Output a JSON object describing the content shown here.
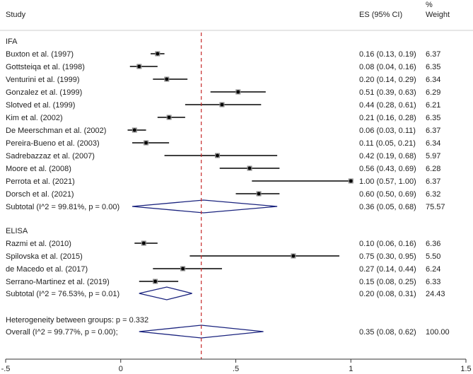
{
  "header": {
    "study": "Study",
    "es": "ES (95% CI)",
    "weight_pct": "%",
    "weight": "Weight"
  },
  "footer": {
    "heterogeneity": "Heterogeneity between groups: p = 0.332"
  },
  "colors": {
    "ci_line": "#000000",
    "marker": "#000000",
    "diamond": "#1a237e",
    "ref_line": "#c62828",
    "axis": "#333333"
  },
  "chart_data": {
    "type": "forest",
    "xlim": [
      -0.5,
      1.5
    ],
    "xticks": [
      {
        "value": -0.5,
        "label": "-.5"
      },
      {
        "value": 0,
        "label": "0"
      },
      {
        "value": 0.5,
        "label": ".5"
      },
      {
        "value": 1,
        "label": "1"
      },
      {
        "value": 1.5,
        "label": "1.5"
      }
    ],
    "overall_line_value": 0.35,
    "groups": [
      {
        "name": "IFA",
        "studies": [
          {
            "label": "Buxton et al.  (1997)",
            "es": 0.16,
            "lo": 0.13,
            "hi": 0.19,
            "es_text": "0.16 (0.13, 0.19)",
            "weight": "6.37"
          },
          {
            "label": "Gottsteiqa et al. (1998)",
            "es": 0.08,
            "lo": 0.04,
            "hi": 0.16,
            "es_text": "0.08 (0.04, 0.16)",
            "weight": "6.35"
          },
          {
            "label": "Venturini et al. (1999)",
            "es": 0.2,
            "lo": 0.14,
            "hi": 0.29,
            "es_text": "0.20 (0.14, 0.29)",
            "weight": "6.34"
          },
          {
            "label": "Gonzalez et al. (1999)",
            "es": 0.51,
            "lo": 0.39,
            "hi": 0.63,
            "es_text": "0.51 (0.39, 0.63)",
            "weight": "6.29"
          },
          {
            "label": "Slotved et al.  (1999)",
            "es": 0.44,
            "lo": 0.28,
            "hi": 0.61,
            "es_text": "0.44 (0.28, 0.61)",
            "weight": "6.21"
          },
          {
            "label": "Kim et al. (2002)",
            "es": 0.21,
            "lo": 0.16,
            "hi": 0.28,
            "es_text": "0.21 (0.16, 0.28)",
            "weight": "6.35"
          },
          {
            "label": "De Meerschman et al.  (2002)",
            "es": 0.06,
            "lo": 0.03,
            "hi": 0.11,
            "es_text": "0.06 (0.03, 0.11)",
            "weight": "6.37"
          },
          {
            "label": "Pereira-Bueno et al. (2003)",
            "es": 0.11,
            "lo": 0.05,
            "hi": 0.21,
            "es_text": "0.11 (0.05, 0.21)",
            "weight": "6.34"
          },
          {
            "label": "Sadrebazzaz et al. (2007)",
            "es": 0.42,
            "lo": 0.19,
            "hi": 0.68,
            "es_text": "0.42 (0.19, 0.68)",
            "weight": "5.97"
          },
          {
            "label": "Moore et al. (2008)",
            "es": 0.56,
            "lo": 0.43,
            "hi": 0.69,
            "es_text": "0.56 (0.43, 0.69)",
            "weight": "6.28"
          },
          {
            "label": "Perrota et al. (2021)",
            "es": 1.0,
            "lo": 0.57,
            "hi": 1.0,
            "es_text": "1.00 (0.57, 1.00)",
            "weight": "6.37"
          },
          {
            "label": "Dorsch et al. (2021)",
            "es": 0.6,
            "lo": 0.5,
            "hi": 0.69,
            "es_text": "0.60 (0.50, 0.69)",
            "weight": "6.32"
          }
        ],
        "subtotal": {
          "label": "Subtotal  (I^2 = 99.81%, p = 0.00)",
          "es": 0.36,
          "lo": 0.05,
          "hi": 0.68,
          "es_text": "0.36 (0.05, 0.68)",
          "weight": "75.57"
        }
      },
      {
        "name": "ELISA",
        "studies": [
          {
            "label": "Razmi et al. (2010)",
            "es": 0.1,
            "lo": 0.06,
            "hi": 0.16,
            "es_text": "0.10 (0.06, 0.16)",
            "weight": "6.36"
          },
          {
            "label": "Spilovska et al. (2015)",
            "es": 0.75,
            "lo": 0.3,
            "hi": 0.95,
            "es_text": "0.75 (0.30, 0.95)",
            "weight": "5.50"
          },
          {
            "label": "de Macedo et al. (2017)",
            "es": 0.27,
            "lo": 0.14,
            "hi": 0.44,
            "es_text": "0.27 (0.14, 0.44)",
            "weight": "6.24"
          },
          {
            "label": "Serrano-Martinez et al. (2019)",
            "es": 0.15,
            "lo": 0.08,
            "hi": 0.25,
            "es_text": "0.15 (0.08, 0.25)",
            "weight": "6.33"
          }
        ],
        "subtotal": {
          "label": "Subtotal  (I^2 = 76.53%, p = 0.01)",
          "es": 0.2,
          "lo": 0.08,
          "hi": 0.31,
          "es_text": "0.20 (0.08, 0.31)",
          "weight": "24.43"
        }
      }
    ],
    "overall": {
      "label": "Overall  (I^2 = 99.77%, p = 0.00);",
      "es": 0.35,
      "lo": 0.08,
      "hi": 0.62,
      "es_text": "0.35 (0.08, 0.62)",
      "weight": "100.00"
    }
  }
}
